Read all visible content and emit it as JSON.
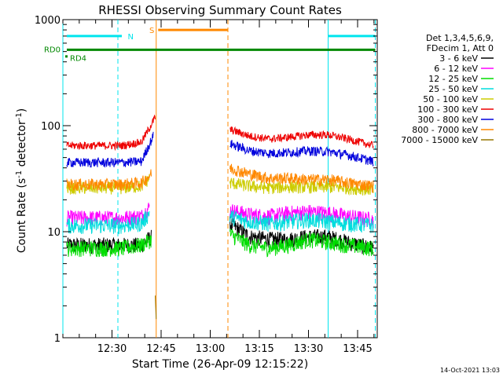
{
  "chart_data": {
    "type": "line",
    "title": "RHESSI Observing Summary Count Rates",
    "xlabel": "Start Time (26-Apr-09 12:15:22)",
    "ylabel_prefix": "Count Rate (s",
    "ylabel_exp": "-1",
    "ylabel_suffix": " detector",
    "ylabel_close": ")",
    "yscale": "log",
    "ylim": [
      1,
      1000
    ],
    "xlim_minutes": [
      12.25,
      13.85
    ],
    "x_tick_values": [
      12.5,
      12.75,
      13.0,
      13.25,
      13.5,
      13.75
    ],
    "x_tick_labels": [
      "12:30",
      "12:45",
      "13:00",
      "13:15",
      "13:30",
      "13:45"
    ],
    "y_tick_values": [
      1,
      10,
      100,
      1000
    ],
    "y_tick_labels": [
      "1",
      "10",
      "100",
      "1000"
    ],
    "timestamp": "14-Oct-2021 13:03",
    "legend": {
      "header": [
        "Det 1,3,4,5,6,9,",
        "FDecim 1, Att 0"
      ],
      "entries": [
        {
          "label": "3 - 6 keV",
          "color": "#000000"
        },
        {
          "label": "6 - 12 keV",
          "color": "#ff00ff"
        },
        {
          "label": "12 - 25 keV",
          "color": "#00dd00"
        },
        {
          "label": "25 - 50 keV",
          "color": "#00dddd"
        },
        {
          "label": "50 - 100 keV",
          "color": "#cccc00"
        },
        {
          "label": "100 - 300 keV",
          "color": "#ee0000"
        },
        {
          "label": "300 - 800 keV",
          "color": "#0000dd"
        },
        {
          "label": "800 - 7000 keV",
          "color": "#ff8800"
        },
        {
          "label": "7000 - 15000 keV",
          "color": "#997700"
        }
      ]
    },
    "flags": [
      {
        "label": "N",
        "color": "#00e5ee"
      },
      {
        "label": "S",
        "color": "#ff8800"
      },
      {
        "label": "RD0",
        "color": "#008800"
      },
      {
        "label": "RD4",
        "color": "#008800"
      }
    ],
    "series": [
      {
        "name": "3 - 6 keV",
        "color": "#000000",
        "segments": [
          {
            "x": [
              12.27,
              12.5,
              12.65,
              12.7
            ],
            "y": [
              7.5,
              7.5,
              7.5,
              9
            ]
          },
          {
            "x": [
              13.1,
              13.2,
              13.3,
              13.4,
              13.5,
              13.6,
              13.7,
              13.83
            ],
            "y": [
              12,
              9,
              8.5,
              8.5,
              9,
              9,
              8,
              7
            ]
          }
        ]
      },
      {
        "name": "6 - 12 keV",
        "color": "#ff00ff",
        "segments": [
          {
            "x": [
              12.27,
              12.4,
              12.55,
              12.65,
              12.69
            ],
            "y": [
              13.5,
              13.5,
              13.5,
              14,
              17
            ]
          },
          {
            "x": [
              13.1,
              13.2,
              13.3,
              13.4,
              13.5,
              13.6,
              13.7,
              13.83
            ],
            "y": [
              16,
              14.5,
              14,
              15,
              15.5,
              15,
              14,
              13
            ]
          }
        ]
      },
      {
        "name": "12 - 25 keV",
        "color": "#00dd00",
        "segments": [
          {
            "x": [
              12.27,
              12.4,
              12.55,
              12.65,
              12.7
            ],
            "y": [
              7,
              7,
              7,
              7.5,
              8.5
            ]
          },
          {
            "x": [
              13.1,
              13.2,
              13.3,
              13.4,
              13.5,
              13.6,
              13.7,
              13.83
            ],
            "y": [
              9.5,
              7.5,
              7,
              7.5,
              8.5,
              8,
              7.5,
              7
            ]
          }
        ]
      },
      {
        "name": "25 - 50 keV",
        "color": "#00dddd",
        "segments": [
          {
            "x": [
              12.27,
              12.4,
              12.55,
              12.65,
              12.69
            ],
            "y": [
              11.5,
              11.5,
              11.5,
              12,
              15
            ]
          },
          {
            "x": [
              13.1,
              13.2,
              13.3,
              13.4,
              13.5,
              13.6,
              13.7,
              13.83
            ],
            "y": [
              14,
              12.5,
              12,
              12.5,
              13,
              12.5,
              12,
              11.5
            ]
          }
        ]
      },
      {
        "name": "50 - 100 keV",
        "color": "#cccc00",
        "segments": [
          {
            "x": [
              12.27,
              12.4,
              12.55,
              12.65,
              12.69
            ],
            "y": [
              26,
              26,
              26,
              27,
              32
            ]
          },
          {
            "x": [
              13.1,
              13.2,
              13.3,
              13.4,
              13.5,
              13.6,
              13.7,
              13.83
            ],
            "y": [
              29,
              27,
              26,
              26.5,
              26.5,
              26.5,
              26,
              25
            ]
          }
        ]
      },
      {
        "name": "100 - 300 keV",
        "color": "#ee0000",
        "segments": [
          {
            "x": [
              12.27,
              12.4,
              12.55,
              12.65,
              12.72
            ],
            "y": [
              65,
              65,
              65,
              70,
              120
            ]
          },
          {
            "x": [
              13.1,
              13.2,
              13.3,
              13.4,
              13.5,
              13.6,
              13.7,
              13.83
            ],
            "y": [
              92,
              80,
              75,
              78,
              82,
              82,
              75,
              65
            ]
          }
        ]
      },
      {
        "name": "300 - 800 keV",
        "color": "#0000dd",
        "segments": [
          {
            "x": [
              12.27,
              12.4,
              12.55,
              12.65,
              12.71
            ],
            "y": [
              45,
              45,
              45,
              46,
              80
            ]
          },
          {
            "x": [
              13.1,
              13.2,
              13.3,
              13.4,
              13.5,
              13.6,
              13.7,
              13.83
            ],
            "y": [
              68,
              58,
              55,
              56,
              58,
              57,
              53,
              46
            ]
          }
        ]
      },
      {
        "name": "800 - 7000 keV",
        "color": "#ff8800",
        "segments": [
          {
            "x": [
              12.27,
              12.4,
              12.55,
              12.65,
              12.7
            ],
            "y": [
              28,
              28,
              28,
              29,
              35
            ]
          },
          {
            "x": [
              13.1,
              13.2,
              13.3,
              13.4,
              13.5,
              13.6,
              13.7,
              13.83
            ],
            "y": [
              40,
              35,
              32,
              32,
              31,
              31,
              29,
              27
            ]
          }
        ]
      },
      {
        "name": "7000 - 15000 keV",
        "color": "#997700",
        "segments": [
          {
            "x": [
              12.72,
              12.725
            ],
            "y": [
              2.5,
              1.5
            ]
          }
        ]
      }
    ],
    "vertical_lines": [
      {
        "x": 12.25,
        "color": "#00e5ee",
        "style": "solid"
      },
      {
        "x": 12.53,
        "color": "#00e5ee",
        "style": "dashed"
      },
      {
        "x": 12.725,
        "color": "#ff8800",
        "style": "solid"
      },
      {
        "x": 13.09,
        "color": "#ff8800",
        "style": "dashed"
      },
      {
        "x": 13.6,
        "color": "#00e5ee",
        "style": "solid"
      },
      {
        "x": 13.84,
        "color": "#00e5ee",
        "style": "dashed"
      }
    ],
    "flag_bars": [
      {
        "x": [
          12.27,
          12.55
        ],
        "y": 700,
        "color": "#00e5ee",
        "label_x": 12.58
      },
      {
        "x": [
          13.6,
          13.84
        ],
        "y": 700,
        "color": "#00e5ee"
      },
      {
        "x": [
          12.735,
          13.09
        ],
        "y": 800,
        "color": "#ff8800",
        "label_x": 12.69
      },
      {
        "x": [
          12.27,
          13.84
        ],
        "y": 520,
        "color": "#008800"
      }
    ]
  }
}
